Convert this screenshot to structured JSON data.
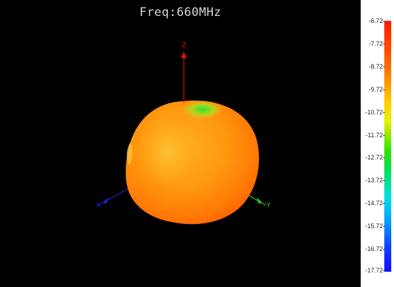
{
  "plot": {
    "title": "Freq:660MHz"
  },
  "axes": {
    "z_label": "Z",
    "y_label": "Y",
    "x_label": "X",
    "z_color": "#e01010",
    "y_color": "#20d020",
    "x_color": "#2020e0"
  },
  "pattern": {
    "description_color_top": "#30e030",
    "body_color": "#ff9a10",
    "edge_color": "#ff5a00"
  },
  "colorbar": {
    "ticks": [
      "-6.72",
      "-7.72",
      "-8.72",
      "-9.72",
      "-10.72",
      "-11.72",
      "-12.72",
      "-13.72",
      "-14.72",
      "-15.72",
      "-16.72",
      "-17.72"
    ],
    "max": -6.72,
    "min": -17.72
  }
}
